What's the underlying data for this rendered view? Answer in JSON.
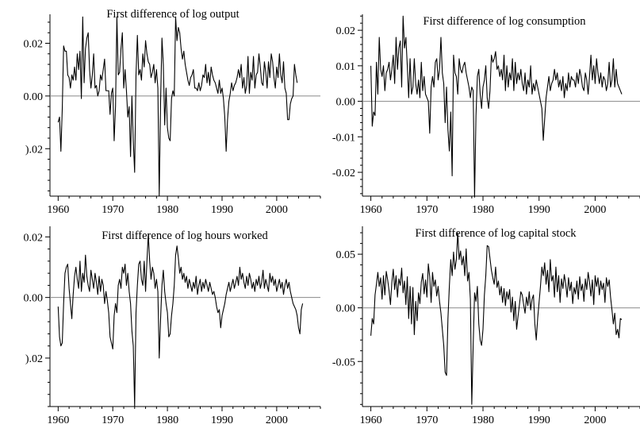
{
  "chart_data": [
    {
      "type": "line",
      "title": "First difference of log output",
      "xlabel": "",
      "ylabel": "",
      "xlim": [
        1958.5,
        2008
      ],
      "ylim": [
        -0.038,
        0.031
      ],
      "x_ticks": [
        1960,
        1970,
        1980,
        1990,
        2000
      ],
      "x_tick_labels": [
        "1960",
        "1970",
        "1980",
        "1990",
        "2000"
      ],
      "y_ticks": [
        -0.02,
        0.0,
        0.02
      ],
      "y_tick_labels": [
        ").02",
        "0.00",
        "0.02"
      ],
      "zero_line": true,
      "grid": false,
      "x_start": 1960.0,
      "x_step": 0.25,
      "values": [
        -0.01,
        -0.008,
        -0.021,
        -0.005,
        0.019,
        0.017,
        0.017,
        0.008,
        0.007,
        0.003,
        0.008,
        0.006,
        0.011,
        0.006,
        0.016,
        0.01,
        0.017,
        -0.001,
        0.03,
        0.005,
        0.018,
        0.022,
        0.024,
        0.01,
        0.003,
        0.008,
        0.016,
        0.003,
        0.004,
        0.0,
        0.002,
        0.008,
        0.006,
        0.01,
        0.014,
        0.002,
        0.002,
        0.002,
        -0.007,
        0.001,
        0.003,
        -0.017,
        -0.004,
        0.03,
        0.008,
        0.009,
        0.018,
        0.024,
        0.003,
        0.01,
        0.002,
        -0.008,
        -0.004,
        -0.023,
        0.0,
        -0.017,
        -0.029,
        0.008,
        0.023,
        0.008,
        0.01,
        0.006,
        0.016,
        0.011,
        0.021,
        0.016,
        0.013,
        0.012,
        0.007,
        0.009,
        0.012,
        0.005,
        0.01,
        0.003,
        -0.038,
        -0.002,
        0.022,
        0.012,
        -0.011,
        0.003,
        -0.012,
        -0.016,
        -0.017,
        -0.001,
        0.002,
        0.0,
        0.03,
        0.021,
        0.026,
        0.024,
        0.018,
        0.014,
        0.017,
        0.012,
        0.009,
        0.006,
        0.004,
        0.007,
        0.008,
        0.01,
        0.003,
        0.003,
        0.002,
        0.005,
        0.002,
        0.004,
        0.008,
        0.007,
        0.012,
        0.005,
        0.009,
        0.004,
        0.011,
        0.008,
        0.006,
        0.005,
        0.003,
        0.001,
        0.006,
        0.001,
        0.003,
        -0.001,
        -0.008,
        -0.021,
        -0.009,
        -0.002,
        0.001,
        0.005,
        0.002,
        0.004,
        0.005,
        0.007,
        0.01,
        0.007,
        0.012,
        0.003,
        0.007,
        0.001,
        0.004,
        0.015,
        0.001,
        0.009,
        0.006,
        0.015,
        0.003,
        0.008,
        0.009,
        0.016,
        0.011,
        0.005,
        0.004,
        0.013,
        0.009,
        0.003,
        0.013,
        0.007,
        0.016,
        0.013,
        0.007,
        0.003,
        0.011,
        0.007,
        0.016,
        0.008,
        0.005,
        0.013,
        0.003,
        0.001,
        -0.009,
        -0.009,
        -0.003,
        -0.001,
        0.0,
        0.012,
        0.008,
        0.005
      ]
    },
    {
      "type": "line",
      "title": "First difference of log consumption",
      "xlabel": "",
      "ylabel": "",
      "xlim": [
        1958.5,
        2008
      ],
      "ylim": [
        -0.0267,
        0.0245
      ],
      "x_ticks": [
        1960,
        1970,
        1980,
        1990,
        2000
      ],
      "x_tick_labels": [
        "1960",
        "1970",
        "1980",
        "1990",
        "2000"
      ],
      "y_ticks": [
        -0.02,
        -0.01,
        0.0,
        0.01,
        0.02
      ],
      "y_tick_labels": [
        "-0.02",
        "-0.01",
        "0.00",
        "0.01",
        "0.02"
      ],
      "zero_line": true,
      "grid": false,
      "x_start": 1960.0,
      "x_step": 0.25,
      "values": [
        0.01,
        -0.007,
        -0.003,
        -0.004,
        0.011,
        0.002,
        0.018,
        0.009,
        0.007,
        0.01,
        0.003,
        0.008,
        0.009,
        0.011,
        0.006,
        0.009,
        0.013,
        0.005,
        0.018,
        0.009,
        0.015,
        0.017,
        0.004,
        0.024,
        0.015,
        0.018,
        0.01,
        0.001,
        0.012,
        0.002,
        0.004,
        0.012,
        0.005,
        0.002,
        0.006,
        0.001,
        0.011,
        0.003,
        0.007,
        0.002,
        0.001,
        0.0,
        -0.009,
        0.004,
        0.007,
        0.004,
        0.011,
        0.012,
        0.006,
        0.009,
        0.018,
        0.008,
        0.005,
        -0.006,
        0.004,
        -0.008,
        -0.014,
        -0.003,
        -0.021,
        0.013,
        0.008,
        0.007,
        0.002,
        0.012,
        0.009,
        0.008,
        0.01,
        0.011,
        0.008,
        0.006,
        0.004,
        0.001,
        0.004,
        0.003,
        -0.027,
        -0.004,
        0.007,
        0.009,
        0.002,
        -0.002,
        0.004,
        0.006,
        0.01,
        0.001,
        -0.002,
        0.003,
        0.013,
        0.011,
        0.012,
        0.014,
        0.009,
        0.01,
        0.007,
        0.009,
        0.006,
        0.013,
        0.003,
        0.01,
        0.004,
        0.008,
        0.006,
        0.012,
        0.003,
        0.011,
        0.005,
        0.008,
        0.006,
        0.009,
        0.005,
        0.003,
        0.008,
        0.002,
        0.006,
        0.004,
        0.01,
        0.002,
        0.005,
        0.003,
        0.006,
        0.004,
        0.002,
        0.0,
        -0.002,
        -0.011,
        -0.005,
        0.001,
        0.004,
        0.007,
        0.003,
        0.005,
        0.006,
        0.009,
        0.006,
        0.008,
        0.004,
        0.006,
        0.003,
        0.007,
        0.001,
        0.005,
        0.003,
        0.008,
        0.004,
        0.007,
        0.006,
        0.006,
        0.004,
        0.008,
        0.005,
        0.009,
        0.007,
        0.004,
        0.003,
        0.008,
        0.006,
        0.002,
        0.007,
        0.013,
        0.006,
        0.01,
        0.005,
        0.012,
        0.008,
        0.005,
        0.008,
        0.004,
        0.007,
        0.006,
        0.003,
        0.005,
        0.011,
        0.004,
        0.006,
        0.012,
        0.004,
        0.009,
        0.005,
        0.004,
        0.003,
        0.002
      ]
    },
    {
      "type": "line",
      "title": "First difference of log hours worked",
      "xlabel": "",
      "ylabel": "",
      "xlim": [
        1958.5,
        2008
      ],
      "ylim": [
        -0.036,
        0.0235
      ],
      "x_ticks": [
        1960,
        1970,
        1980,
        1990,
        2000
      ],
      "x_tick_labels": [
        "1960",
        "1970",
        "1980",
        "1990",
        "2000"
      ],
      "y_ticks": [
        -0.02,
        0.0,
        0.02
      ],
      "y_tick_labels": [
        ").02",
        "0.00",
        "0.02"
      ],
      "zero_line": true,
      "grid": false,
      "x_start": 1960.0,
      "x_step": 0.25,
      "values": [
        -0.003,
        -0.013,
        -0.016,
        -0.015,
        -0.002,
        0.008,
        0.01,
        0.011,
        0.003,
        -0.002,
        -0.007,
        0.001,
        0.007,
        0.01,
        0.006,
        0.003,
        0.012,
        0.002,
        0.008,
        0.005,
        0.014,
        0.007,
        0.004,
        0.002,
        0.009,
        0.006,
        0.003,
        0.008,
        0.005,
        0.001,
        0.007,
        0.002,
        0.006,
        0.004,
        -0.002,
        0.002,
        -0.001,
        -0.005,
        -0.013,
        -0.015,
        -0.017,
        -0.006,
        -0.002,
        -0.005,
        0.004,
        0.006,
        0.003,
        0.01,
        0.008,
        0.011,
        0.004,
        0.008,
        0.002,
        -0.002,
        -0.011,
        -0.016,
        -0.036,
        -0.005,
        0.004,
        0.011,
        0.012,
        0.006,
        0.004,
        0.012,
        0.002,
        0.012,
        0.021,
        0.012,
        0.006,
        0.01,
        0.008,
        0.003,
        0.006,
        0.002,
        -0.02,
        -0.007,
        0.004,
        0.009,
        0.002,
        -0.002,
        -0.005,
        -0.013,
        -0.012,
        -0.006,
        -0.002,
        0.004,
        0.014,
        0.017,
        0.013,
        0.008,
        0.01,
        0.006,
        0.008,
        0.005,
        0.007,
        0.003,
        0.006,
        0.004,
        0.002,
        0.005,
        0.003,
        0.007,
        0.001,
        0.004,
        0.006,
        0.002,
        0.005,
        0.003,
        0.006,
        0.004,
        0.002,
        0.005,
        0.003,
        0.001,
        0.002,
        0.0,
        -0.003,
        -0.005,
        -0.004,
        -0.01,
        -0.006,
        -0.004,
        -0.002,
        0.001,
        0.003,
        0.005,
        0.002,
        0.004,
        0.006,
        0.003,
        0.005,
        0.007,
        0.004,
        0.01,
        0.006,
        0.008,
        0.005,
        0.003,
        0.007,
        0.004,
        0.008,
        0.006,
        0.003,
        0.005,
        0.002,
        0.006,
        0.004,
        0.007,
        0.003,
        0.005,
        0.009,
        0.003,
        0.006,
        0.004,
        0.002,
        0.008,
        0.005,
        0.007,
        0.004,
        0.006,
        0.002,
        0.004,
        0.006,
        0.003,
        0.005,
        0.001,
        0.004,
        0.006,
        0.003,
        0.005,
        0.002,
        0.0,
        -0.002,
        -0.003,
        -0.004,
        -0.006,
        -0.01,
        -0.012,
        -0.004,
        -0.002
      ]
    },
    {
      "type": "line",
      "title": "First difference of log capital stock",
      "xlabel": "",
      "ylabel": "",
      "xlim": [
        1958.5,
        2008
      ],
      "ylim": [
        -0.092,
        0.076
      ],
      "x_ticks": [
        1960,
        1970,
        1980,
        1990,
        2000
      ],
      "x_tick_labels": [
        "1960",
        "1970",
        "1980",
        "1990",
        "2000"
      ],
      "y_ticks": [
        -0.05,
        0.0,
        0.05
      ],
      "y_tick_labels": [
        "-0.05",
        "0.00",
        "0.05"
      ],
      "zero_line": true,
      "grid": false,
      "x_start": 1960.0,
      "x_step": 0.25,
      "values": [
        -0.026,
        -0.01,
        -0.015,
        0.012,
        0.022,
        0.033,
        0.02,
        0.028,
        0.008,
        0.03,
        0.012,
        0.034,
        0.026,
        0.016,
        0.003,
        0.024,
        0.036,
        0.017,
        0.03,
        0.01,
        0.027,
        0.021,
        0.037,
        0.014,
        0.025,
        0.003,
        0.029,
        -0.01,
        0.02,
        -0.015,
        0.019,
        -0.025,
        0.006,
        -0.012,
        0.014,
        0.004,
        0.024,
        0.032,
        0.013,
        0.026,
        0.01,
        0.041,
        0.029,
        0.005,
        0.033,
        0.02,
        0.026,
        0.011,
        0.02,
        0.006,
        -0.005,
        -0.02,
        -0.035,
        -0.06,
        -0.063,
        -0.01,
        0.02,
        0.045,
        0.03,
        0.052,
        0.036,
        0.045,
        0.07,
        0.045,
        0.053,
        0.04,
        0.048,
        0.03,
        0.055,
        0.025,
        0.033,
        0.008,
        -0.09,
        -0.035,
        0.014,
        0.006,
        0.02,
        -0.015,
        -0.03,
        -0.035,
        -0.02,
        0.012,
        0.03,
        0.058,
        0.057,
        0.046,
        0.035,
        0.028,
        0.022,
        0.038,
        0.019,
        0.025,
        0.012,
        0.02,
        0.005,
        0.018,
        0.002,
        0.015,
        0.008,
        0.017,
        -0.004,
        0.01,
        -0.012,
        0.006,
        -0.02,
        -0.008,
        0.003,
        0.015,
        0.012,
        0.003,
        -0.005,
        0.01,
        0.002,
        0.015,
        -0.002,
        0.008,
        0.012,
        -0.015,
        -0.03,
        -0.01,
        0.005,
        0.02,
        0.038,
        0.03,
        0.042,
        0.022,
        0.035,
        0.015,
        0.045,
        0.025,
        0.03,
        0.01,
        0.038,
        0.015,
        0.03,
        0.005,
        0.027,
        0.018,
        0.031,
        0.022,
        0.01,
        0.028,
        0.016,
        0.024,
        0.004,
        0.019,
        0.013,
        0.025,
        0.008,
        0.029,
        0.016,
        0.022,
        0.006,
        0.027,
        0.017,
        0.033,
        0.024,
        0.011,
        0.026,
        0.003,
        0.03,
        0.02,
        0.028,
        0.012,
        0.025,
        0.017,
        0.023,
        0.005,
        0.028,
        0.02,
        0.026,
        0.01,
        -0.002,
        -0.015,
        -0.005,
        -0.025,
        -0.02,
        -0.028,
        -0.01,
        -0.011
      ]
    }
  ]
}
